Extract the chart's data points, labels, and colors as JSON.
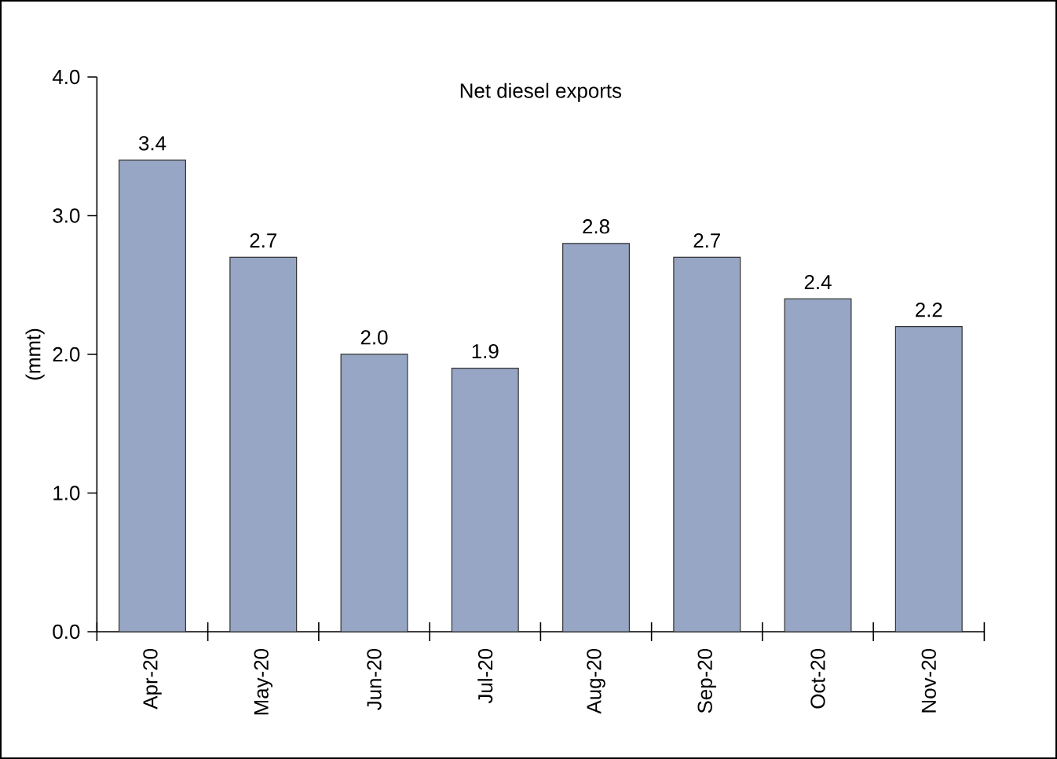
{
  "chart_data": {
    "type": "bar",
    "title": "Net diesel exports",
    "ylabel": "(mmt)",
    "categories": [
      "Apr-20",
      "May-20",
      "Jun-20",
      "Jul-20",
      "Aug-20",
      "Sep-20",
      "Oct-20",
      "Nov-20"
    ],
    "values": [
      3.4,
      2.7,
      2.0,
      1.9,
      2.8,
      2.7,
      2.4,
      2.2
    ],
    "value_labels": [
      "3.4",
      "2.7",
      "2.0",
      "1.9",
      "2.8",
      "2.7",
      "2.4",
      "2.2"
    ],
    "color": "#97a6c4",
    "ylim": [
      0,
      4
    ],
    "yticks": [
      {
        "value": 0,
        "label": "0.0"
      },
      {
        "value": 1,
        "label": "1.0"
      },
      {
        "value": 2,
        "label": "2.0"
      },
      {
        "value": 3,
        "label": "3.0"
      },
      {
        "value": 4,
        "label": "4.0"
      }
    ],
    "grid": false
  }
}
